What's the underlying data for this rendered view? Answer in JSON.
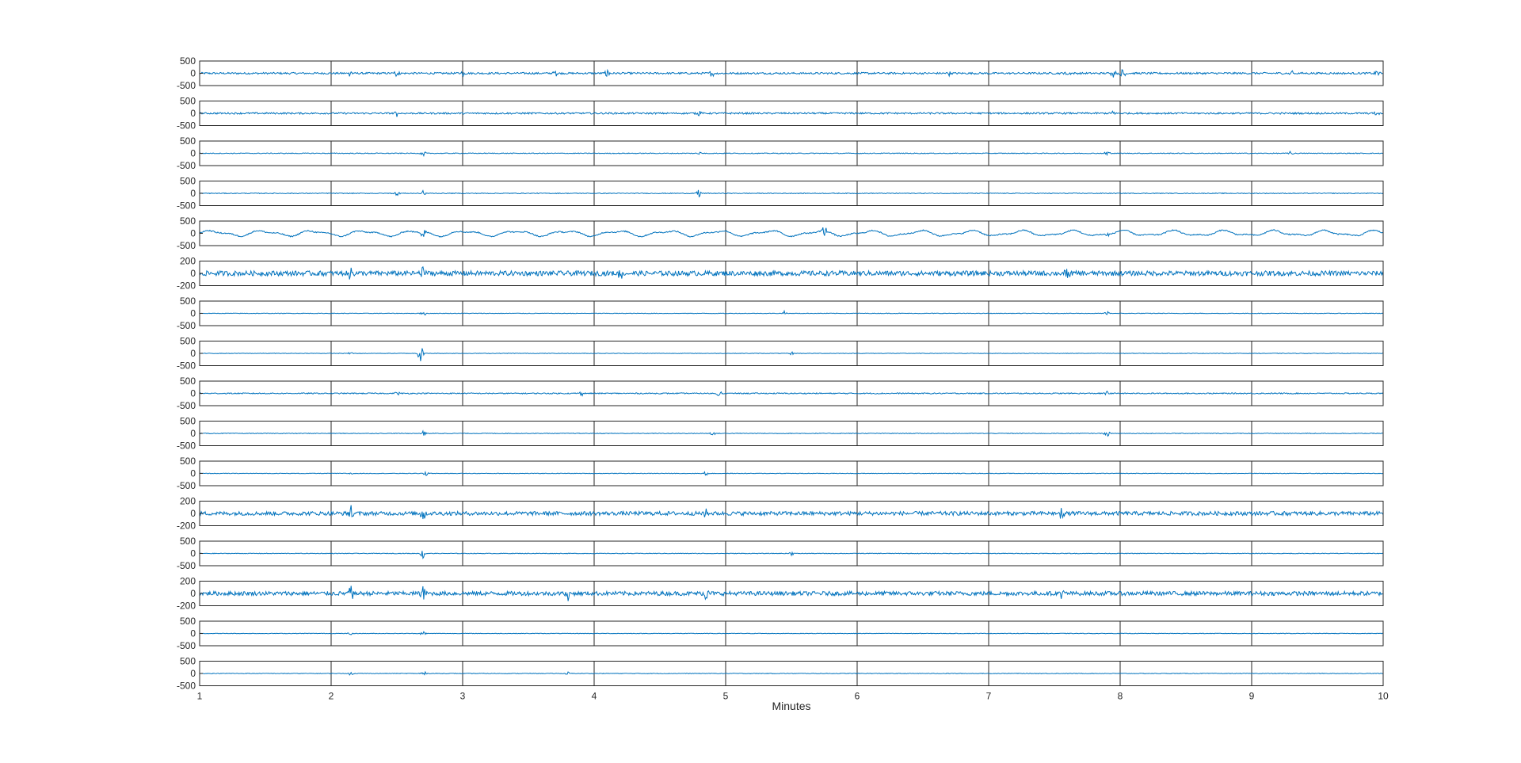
{
  "chart_data": {
    "type": "line",
    "title": "",
    "xlabel": "Minutes",
    "ylabel": "",
    "xlim": [
      1,
      10
    ],
    "xticks": [
      1,
      2,
      3,
      4,
      5,
      6,
      7,
      8,
      9,
      10
    ],
    "grid": "vertical lines at each integer minute",
    "line_color": "#0072BD",
    "channels": [
      {
        "ylim": [
          -500,
          500
        ],
        "yticks": [
          500,
          0,
          -500
        ],
        "amplitude": 38,
        "events": [
          [
            2.15,
            180
          ],
          [
            2.5,
            140
          ],
          [
            3.0,
            120
          ],
          [
            3.7,
            160
          ],
          [
            4.1,
            180
          ],
          [
            4.9,
            150
          ],
          [
            6.7,
            120
          ],
          [
            7.6,
            140
          ],
          [
            7.95,
            160
          ],
          [
            8.02,
            260
          ],
          [
            9.3,
            170
          ],
          [
            9.95,
            150
          ]
        ]
      },
      {
        "ylim": [
          -500,
          500
        ],
        "yticks": [
          500,
          0,
          -500
        ],
        "amplitude": 34,
        "events": [
          [
            2.5,
            120
          ],
          [
            4.8,
            160
          ],
          [
            7.95,
            120
          ],
          [
            9.95,
            140
          ]
        ]
      },
      {
        "ylim": [
          -500,
          500
        ],
        "yticks": [
          500,
          0,
          -500
        ],
        "amplitude": 16,
        "events": [
          [
            2.7,
            150
          ],
          [
            4.8,
            90
          ],
          [
            7.9,
            130
          ],
          [
            9.3,
            90
          ]
        ]
      },
      {
        "ylim": [
          -500,
          500
        ],
        "yticks": [
          500,
          0,
          -500
        ],
        "amplitude": 16,
        "events": [
          [
            2.5,
            100
          ],
          [
            2.7,
            160
          ],
          [
            4.8,
            200
          ]
        ]
      },
      {
        "ylim": [
          -500,
          500
        ],
        "yticks": [
          500,
          0,
          -500
        ],
        "amplitude": 24,
        "events": [
          [
            2.7,
            320
          ],
          [
            5.75,
            260
          ],
          [
            7.9,
            140
          ]
        ]
      },
      {
        "ylim": [
          -200,
          200
        ],
        "yticks": [
          200,
          0,
          -200
        ],
        "amplitude": 40,
        "events": [
          [
            2.15,
            120
          ],
          [
            2.7,
            160
          ],
          [
            4.2,
            110
          ],
          [
            7.6,
            120
          ]
        ]
      },
      {
        "ylim": [
          -500,
          500
        ],
        "yticks": [
          500,
          0,
          -500
        ],
        "amplitude": 10,
        "events": [
          [
            2.7,
            170
          ],
          [
            5.45,
            110
          ],
          [
            7.9,
            90
          ]
        ]
      },
      {
        "ylim": [
          -500,
          500
        ],
        "yticks": [
          500,
          0,
          -500
        ],
        "amplitude": 10,
        "events": [
          [
            2.15,
            90
          ],
          [
            2.68,
            370
          ],
          [
            5.5,
            80
          ]
        ]
      },
      {
        "ylim": [
          -500,
          500
        ],
        "yticks": [
          500,
          0,
          -500
        ],
        "amplitude": 22,
        "events": [
          [
            2.5,
            120
          ],
          [
            3.9,
            110
          ],
          [
            4.95,
            110
          ],
          [
            7.9,
            130
          ]
        ]
      },
      {
        "ylim": [
          -500,
          500
        ],
        "yticks": [
          500,
          0,
          -500
        ],
        "amplitude": 14,
        "events": [
          [
            2.7,
            110
          ],
          [
            4.9,
            90
          ],
          [
            7.9,
            140
          ]
        ]
      },
      {
        "ylim": [
          -500,
          500
        ],
        "yticks": [
          500,
          0,
          -500
        ],
        "amplitude": 10,
        "events": [
          [
            2.15,
            90
          ],
          [
            2.72,
            160
          ],
          [
            4.85,
            100
          ]
        ]
      },
      {
        "ylim": [
          -200,
          200
        ],
        "yticks": [
          200,
          0,
          -200
        ],
        "amplitude": 32,
        "events": [
          [
            2.15,
            120
          ],
          [
            2.7,
            130
          ],
          [
            4.85,
            110
          ],
          [
            7.55,
            110
          ]
        ]
      },
      {
        "ylim": [
          -500,
          500
        ],
        "yticks": [
          500,
          0,
          -500
        ],
        "amplitude": 12,
        "events": [
          [
            2.7,
            230
          ],
          [
            5.5,
            80
          ]
        ]
      },
      {
        "ylim": [
          -200,
          200
        ],
        "yticks": [
          200,
          0,
          -200
        ],
        "amplitude": 34,
        "events": [
          [
            2.15,
            120
          ],
          [
            2.7,
            140
          ],
          [
            3.8,
            130
          ],
          [
            4.85,
            120
          ],
          [
            7.55,
            100
          ]
        ]
      },
      {
        "ylim": [
          -500,
          500
        ],
        "yticks": [
          500,
          0,
          -500
        ],
        "amplitude": 10,
        "events": [
          [
            2.15,
            80
          ],
          [
            2.7,
            140
          ]
        ]
      },
      {
        "ylim": [
          -500,
          500
        ],
        "yticks": [
          500,
          0,
          -500
        ],
        "amplitude": 12,
        "events": [
          [
            2.15,
            80
          ],
          [
            2.7,
            130
          ],
          [
            3.8,
            70
          ]
        ]
      }
    ]
  }
}
